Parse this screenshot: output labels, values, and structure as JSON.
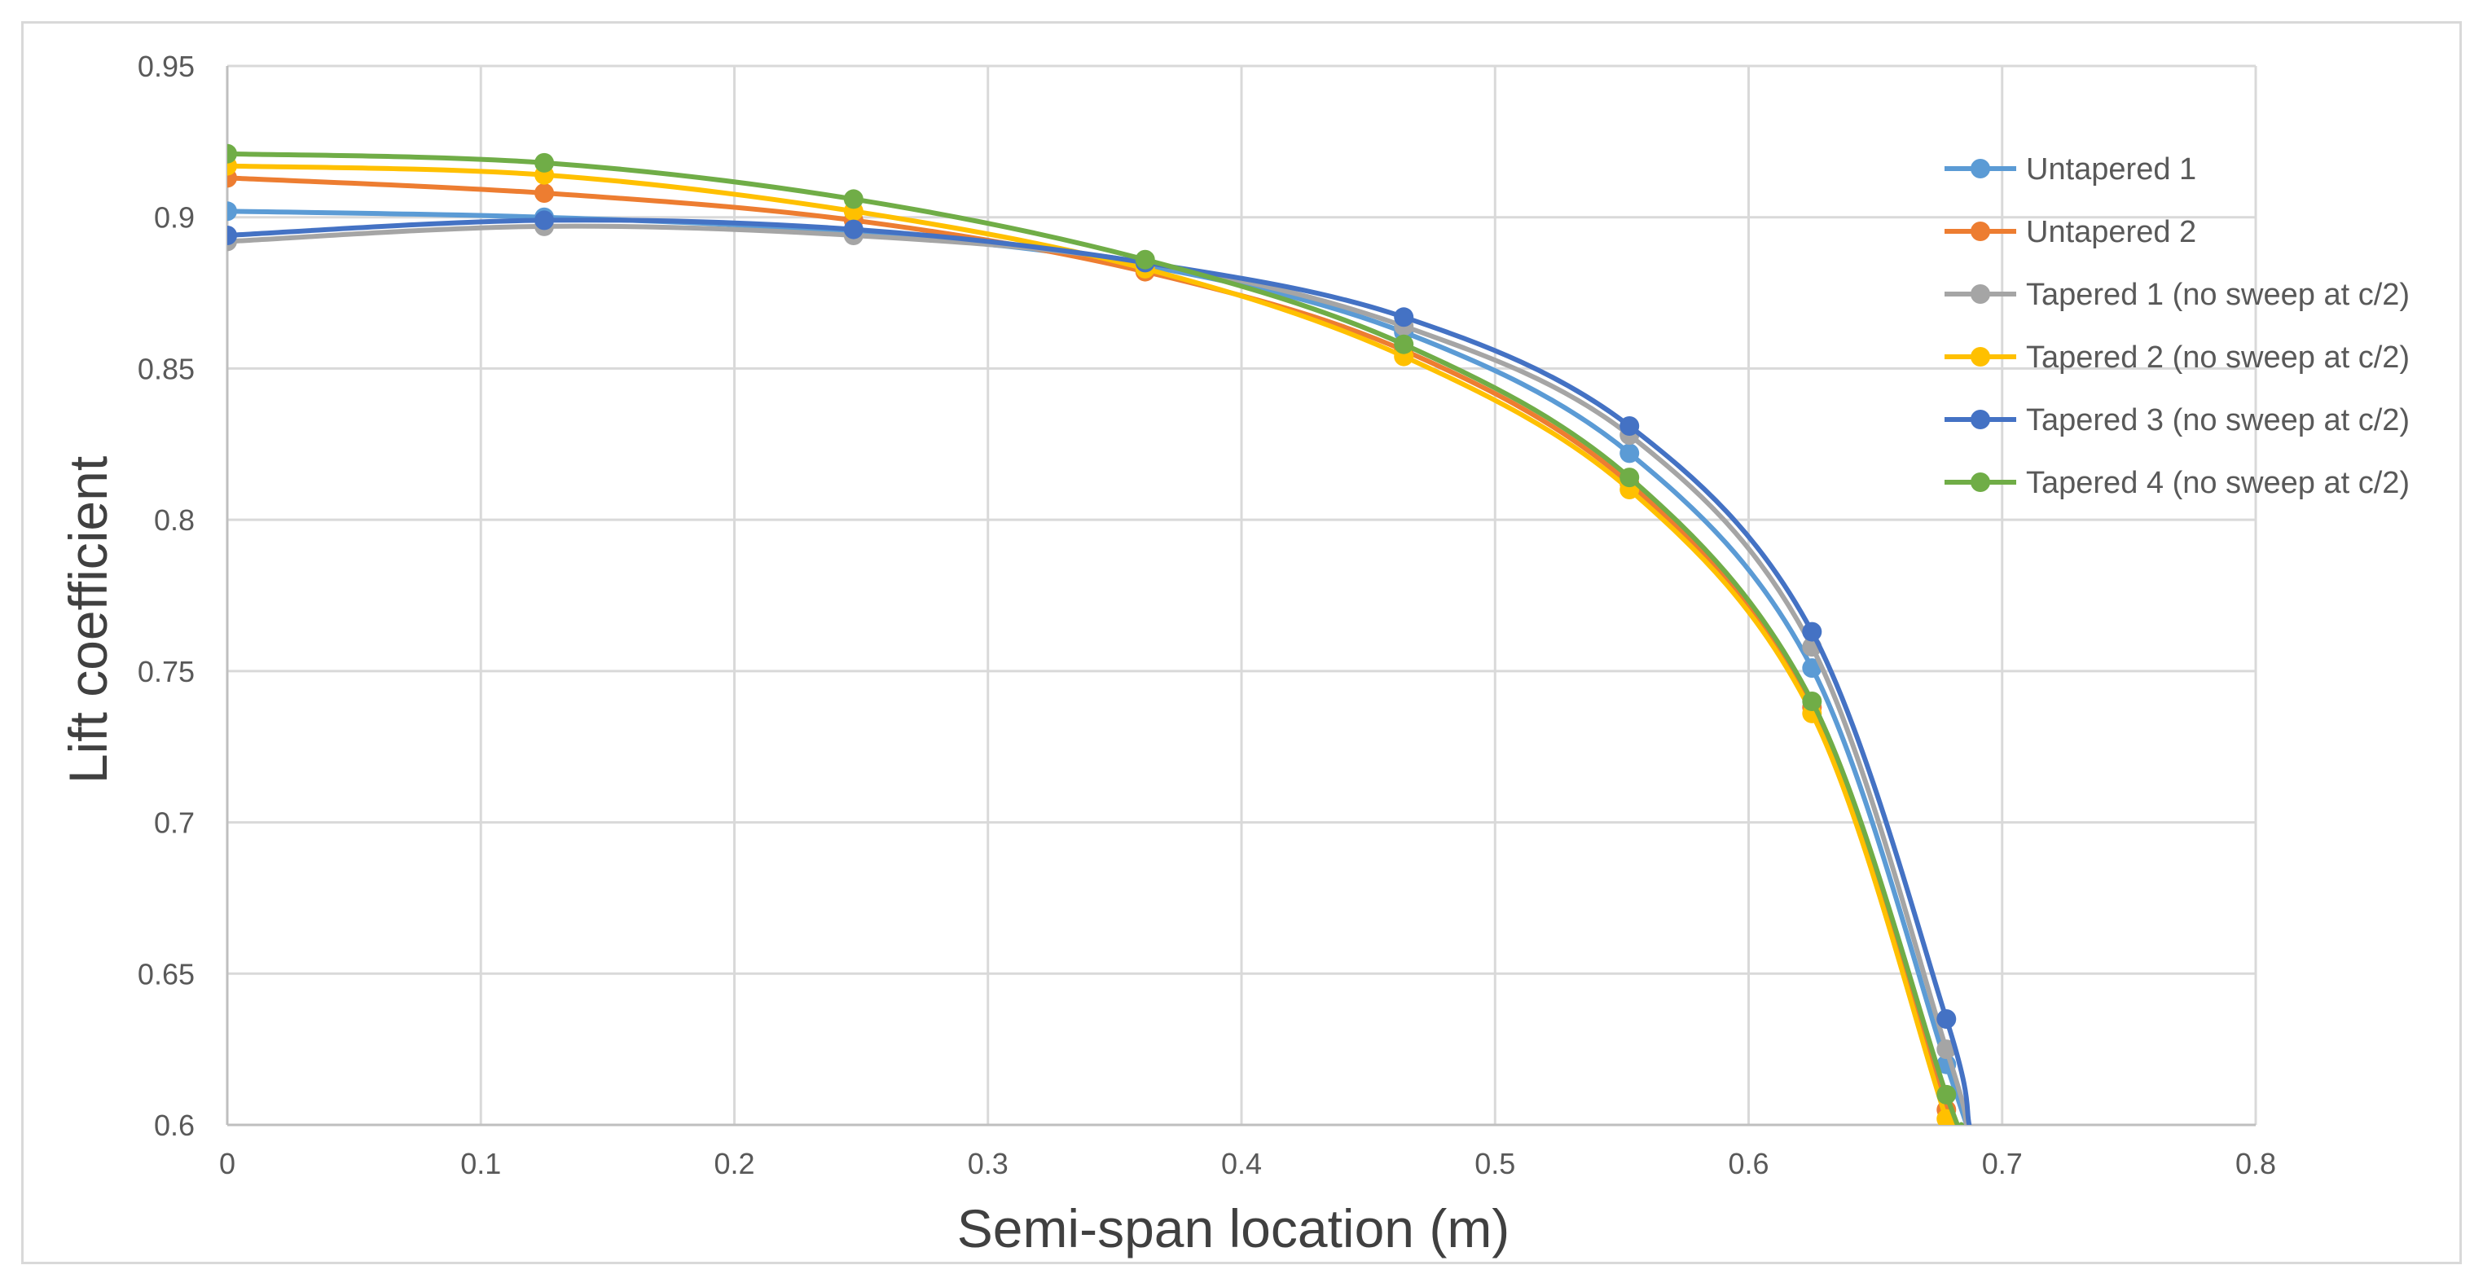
{
  "chart_data": {
    "type": "line",
    "title": "",
    "xlabel": "Semi-span location (m)",
    "ylabel": "Lift coefficient",
    "xlim": [
      0,
      0.8
    ],
    "ylim": [
      0.6,
      0.95
    ],
    "x_ticks": [
      "0",
      "0.1",
      "0.2",
      "0.3",
      "0.4",
      "0.5",
      "0.6",
      "0.7",
      "0.8"
    ],
    "y_ticks": [
      "0.95",
      "0.9",
      "0.85",
      "0.8",
      "0.75",
      "0.7",
      "0.65",
      "0.6"
    ],
    "grid": true,
    "legend_position": "right",
    "series": [
      {
        "name": "Untapered 1",
        "color": "#5B9BD5",
        "x": [
          0,
          0.125,
          0.247,
          0.362,
          0.464,
          0.553,
          0.625,
          0.678,
          0.686
        ],
        "y": [
          0.902,
          0.9,
          0.895,
          0.884,
          0.862,
          0.822,
          0.751,
          0.62,
          0.6
        ]
      },
      {
        "name": "Untapered 2",
        "color": "#ED7D31",
        "x": [
          0,
          0.125,
          0.247,
          0.362,
          0.464,
          0.553,
          0.625,
          0.678,
          0.684
        ],
        "y": [
          0.913,
          0.908,
          0.899,
          0.882,
          0.856,
          0.812,
          0.738,
          0.605,
          0.6
        ]
      },
      {
        "name": "Tapered 1 (no sweep at c/2)",
        "color": "#A5A5A5",
        "x": [
          0,
          0.125,
          0.247,
          0.362,
          0.464,
          0.553,
          0.625,
          0.678,
          0.686
        ],
        "y": [
          0.892,
          0.897,
          0.894,
          0.885,
          0.864,
          0.828,
          0.758,
          0.625,
          0.6
        ]
      },
      {
        "name": "Tapered 2 (no sweep at c/2)",
        "color": "#FFC000",
        "x": [
          0,
          0.125,
          0.247,
          0.362,
          0.464,
          0.553,
          0.625,
          0.678,
          0.682
        ],
        "y": [
          0.917,
          0.914,
          0.902,
          0.883,
          0.854,
          0.81,
          0.736,
          0.602,
          0.6
        ]
      },
      {
        "name": "Tapered 3 (no sweep at c/2)",
        "color": "#4472C4",
        "x": [
          0,
          0.125,
          0.247,
          0.362,
          0.464,
          0.553,
          0.625,
          0.678,
          0.687
        ],
        "y": [
          0.894,
          0.899,
          0.896,
          0.885,
          0.867,
          0.831,
          0.763,
          0.635,
          0.6
        ]
      },
      {
        "name": "Tapered 4 (no sweep at c/2)",
        "color": "#70AD47",
        "x": [
          0,
          0.125,
          0.247,
          0.362,
          0.464,
          0.553,
          0.625,
          0.678,
          0.684
        ],
        "y": [
          0.921,
          0.918,
          0.906,
          0.886,
          0.858,
          0.814,
          0.74,
          0.61,
          0.6
        ]
      }
    ]
  }
}
